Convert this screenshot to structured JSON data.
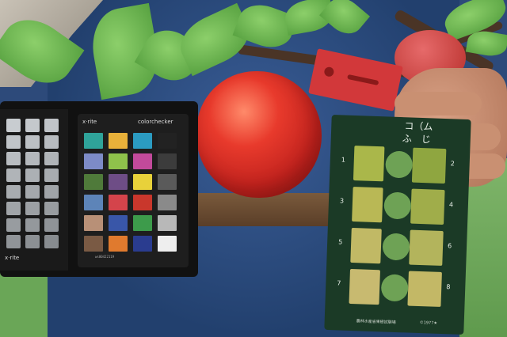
{
  "colorchecker": {
    "brand_left": "x·rite",
    "brand_right": "colorchecker",
    "bottom_code": "ws00422119",
    "left_logo": "x·rite",
    "patch_colors": [
      "#2fa39a",
      "#e8b13a",
      "#2b9bc1",
      "#222222",
      "#7d8bc7",
      "#8fc24b",
      "#c24a9b",
      "#3c3c3c",
      "#4f7a3a",
      "#6e4d86",
      "#e8d13a",
      "#5a5a5a",
      "#5d84b8",
      "#d4444b",
      "#c9372c",
      "#8a8a8a",
      "#b89077",
      "#3956a8",
      "#3d9b4b",
      "#b8b8b8",
      "#7a5a44",
      "#e07a2e",
      "#2a3c8f",
      "#eeeeee"
    ]
  },
  "chart": {
    "label_jp": "コ（ム",
    "label_jp2": "ふ　じ",
    "numbers": [
      "1",
      "2",
      "3",
      "4",
      "5",
      "6",
      "7",
      "8"
    ],
    "footer": "農林水産省果樹試験場",
    "year": "©1977★"
  }
}
